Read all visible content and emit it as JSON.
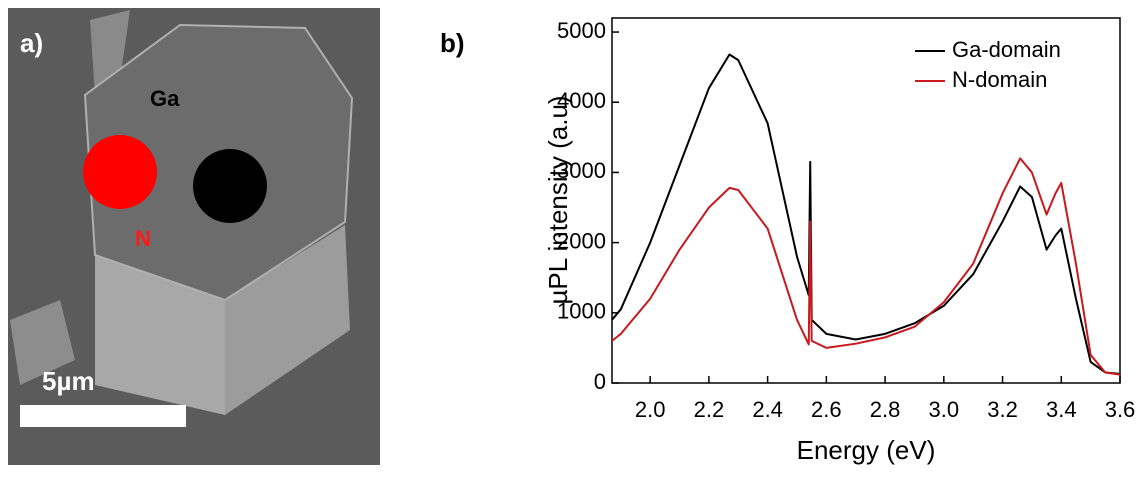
{
  "image": {
    "panel_label": "a)",
    "labels": [
      "Ga",
      "N"
    ],
    "scale_bar": "5µm"
  },
  "chart_data": {
    "type": "line",
    "panel_label": "b)",
    "x_label": "Energy (eV)",
    "y_label": "µPL intensity (a.u)",
    "x": [
      1.87,
      1.9,
      2.0,
      2.1,
      2.2,
      2.27,
      2.3,
      2.4,
      2.5,
      2.54,
      2.545,
      2.55,
      2.6,
      2.7,
      2.8,
      2.9,
      3.0,
      3.1,
      3.2,
      3.26,
      3.3,
      3.35,
      3.38,
      3.4,
      3.45,
      3.5,
      3.55,
      3.6
    ],
    "series": [
      {
        "name": "Ga-domain",
        "color": "#000000",
        "values": [
          900,
          1050,
          2000,
          3100,
          4200,
          4680,
          4600,
          3700,
          1800,
          1250,
          3150,
          900,
          700,
          620,
          700,
          850,
          1100,
          1550,
          2300,
          2800,
          2650,
          1900,
          2100,
          2200,
          1200,
          300,
          150,
          130
        ]
      },
      {
        "name": "N-domain",
        "color": "#c8191e",
        "values": [
          600,
          700,
          1200,
          1900,
          2500,
          2780,
          2750,
          2200,
          900,
          550,
          2300,
          600,
          500,
          560,
          650,
          800,
          1150,
          1700,
          2700,
          3200,
          3000,
          2400,
          2700,
          2850,
          1700,
          400,
          150,
          120
        ]
      }
    ],
    "xlim": [
      1.87,
      3.6
    ],
    "xticks": [
      {
        "value": 2,
        "label": "2.0"
      },
      2.2,
      2.4,
      2.6,
      2.8,
      {
        "value": 3,
        "label": "3.0"
      },
      3.2,
      3.4,
      3.6
    ],
    "ylim": [
      0,
      5200
    ],
    "yticks": [
      0,
      1000,
      2000,
      3000,
      4000,
      5000
    ],
    "legend": "upper right"
  }
}
